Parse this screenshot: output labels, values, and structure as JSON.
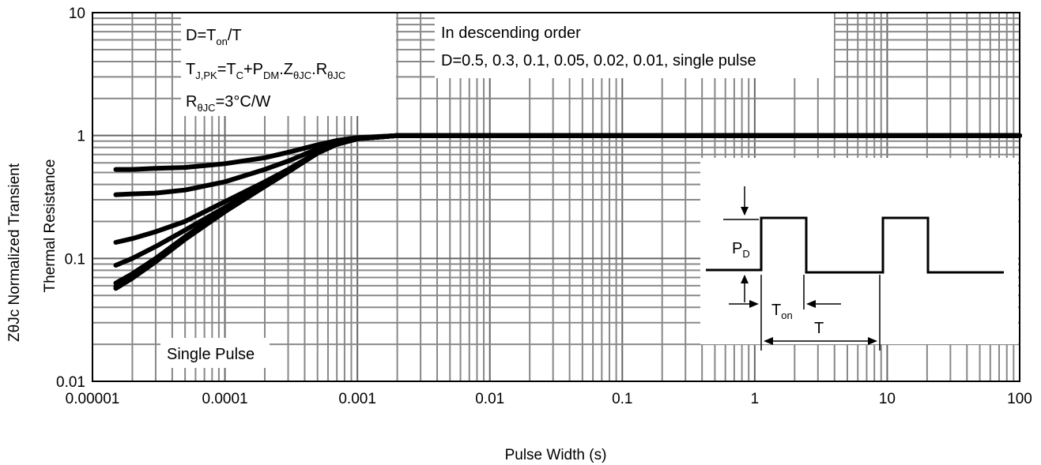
{
  "chart_data": {
    "type": "line",
    "title": "",
    "xlabel": "Pulse Width (s)",
    "ylabel_lines": [
      "ZθJc Normalized Transient",
      "Thermal Resistance"
    ],
    "x_scale": "log",
    "y_scale": "log",
    "xlim": [
      1e-05,
      100
    ],
    "ylim": [
      0.01,
      10
    ],
    "grid": true,
    "x_ticks": [
      "0.00001",
      "0.0001",
      "0.001",
      "0.01",
      "0.1",
      "1",
      "10",
      "100"
    ],
    "y_ticks": [
      "0.01",
      "0.1",
      "1",
      "10"
    ],
    "x": [
      1.5e-05,
      2e-05,
      3e-05,
      5e-05,
      0.0001,
      0.0002,
      0.0003,
      0.0005,
      0.0007,
      0.001,
      0.002,
      0.005,
      0.01,
      0.1,
      1,
      10,
      100
    ],
    "series": [
      {
        "name": "D=0.5",
        "values": [
          0.53,
          0.53,
          0.54,
          0.55,
          0.59,
          0.66,
          0.73,
          0.84,
          0.91,
          0.96,
          1.0,
          1.0,
          1.0,
          1.0,
          1.0,
          1.0,
          1.0
        ]
      },
      {
        "name": "D=0.3",
        "values": [
          0.33,
          0.335,
          0.34,
          0.36,
          0.42,
          0.53,
          0.62,
          0.78,
          0.88,
          0.95,
          1.0,
          1.0,
          1.0,
          1.0,
          1.0,
          1.0,
          1.0
        ]
      },
      {
        "name": "D=0.1",
        "values": [
          0.135,
          0.145,
          0.165,
          0.2,
          0.29,
          0.42,
          0.53,
          0.73,
          0.85,
          0.94,
          1.0,
          1.0,
          1.0,
          1.0,
          1.0,
          1.0,
          1.0
        ]
      },
      {
        "name": "D=0.05",
        "values": [
          0.088,
          0.1,
          0.125,
          0.17,
          0.26,
          0.4,
          0.51,
          0.72,
          0.85,
          0.94,
          1.0,
          1.0,
          1.0,
          1.0,
          1.0,
          1.0,
          1.0
        ]
      },
      {
        "name": "D=0.02",
        "values": [
          0.063,
          0.075,
          0.1,
          0.15,
          0.25,
          0.39,
          0.51,
          0.72,
          0.85,
          0.94,
          1.0,
          1.0,
          1.0,
          1.0,
          1.0,
          1.0,
          1.0
        ]
      },
      {
        "name": "D=0.01",
        "values": [
          0.059,
          0.071,
          0.096,
          0.145,
          0.245,
          0.39,
          0.51,
          0.72,
          0.85,
          0.94,
          1.0,
          1.0,
          1.0,
          1.0,
          1.0,
          1.0,
          1.0
        ]
      },
      {
        "name": "single pulse",
        "values": [
          0.057,
          0.069,
          0.094,
          0.143,
          0.24,
          0.385,
          0.505,
          0.72,
          0.85,
          0.94,
          1.0,
          1.0,
          1.0,
          1.0,
          1.0,
          1.0,
          1.0
        ]
      }
    ]
  },
  "annotations": {
    "box1": {
      "line1": {
        "main": "D=T",
        "sub": "on",
        "tail": "/T"
      },
      "line2": [
        {
          "t": "T"
        },
        {
          "t": "J,PK",
          "sub": true
        },
        {
          "t": "=T"
        },
        {
          "t": "C",
          "sub": true
        },
        {
          "t": "+P"
        },
        {
          "t": "DM",
          "sub": true
        },
        {
          "t": ".Z"
        },
        {
          "t": "θJC",
          "sub": true
        },
        {
          "t": ".R"
        },
        {
          "t": "θJC",
          "sub": true
        }
      ],
      "line3": [
        {
          "t": "R"
        },
        {
          "t": "θJC",
          "sub": true
        },
        {
          "t": "=3°C/W"
        }
      ]
    },
    "box2": {
      "line1": "In descending order",
      "line2": "D=0.5, 0.3, 0.1, 0.05, 0.02, 0.01, single pulse"
    },
    "single_pulse_label": "Single Pulse",
    "inset": {
      "pd_main": "P",
      "pd_sub": "D",
      "ton_main": "T",
      "ton_sub": "on",
      "t_label": "T"
    }
  }
}
